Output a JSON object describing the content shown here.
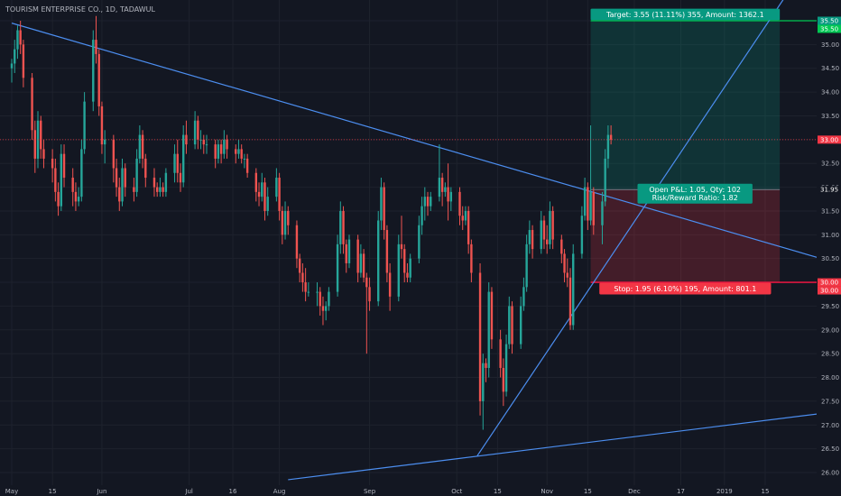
{
  "chart_data": {
    "type": "candlestick",
    "title": "TOURISM ENTERPRISE CO., 1D, TADAWUL",
    "ylim": [
      25.85,
      35.75
    ],
    "y_ticks": [
      "26.00",
      "26.50",
      "27.00",
      "27.50",
      "28.00",
      "28.50",
      "29.00",
      "29.50",
      "30.00",
      "30.50",
      "31.00",
      "31.50",
      "32.00",
      "32.50",
      "33.00",
      "33.50",
      "34.00",
      "34.50",
      "35.00",
      "35.50"
    ],
    "x_ticks": [
      {
        "label": "May",
        "day": 0
      },
      {
        "label": "15",
        "day": 14
      },
      {
        "label": "Jun",
        "day": 31
      },
      {
        "label": "Jul",
        "day": 61
      },
      {
        "label": "16",
        "day": 76
      },
      {
        "label": "Aug",
        "day": 92
      },
      {
        "label": "Sep",
        "day": 123
      },
      {
        "label": "Oct",
        "day": 153
      },
      {
        "label": "15",
        "day": 167
      },
      {
        "label": "Nov",
        "day": 184
      },
      {
        "label": "15",
        "day": 198
      },
      {
        "label": "Dec",
        "day": 214
      },
      {
        "label": "17",
        "day": 230
      },
      {
        "label": "2019",
        "day": 245
      },
      {
        "label": "15",
        "day": 259
      }
    ],
    "price_tags": [
      {
        "value": 35.5,
        "label": "35.50",
        "color": "#089981"
      },
      {
        "value": 35.5,
        "label": "35.50",
        "color": "#00c853",
        "offset": 1
      },
      {
        "value": 33.0,
        "label": "33.00",
        "color": "#f23645"
      },
      {
        "value": 31.95,
        "label": "31.95",
        "color": "#131722"
      },
      {
        "value": 30.0,
        "label": "30.00",
        "color": "#f23645"
      },
      {
        "value": 30.0,
        "label": "30.00",
        "color": "#f23645",
        "offset": 1
      }
    ],
    "position": {
      "start_day": 199,
      "end_day": 264,
      "entry": 31.95,
      "target": 35.5,
      "stop": 30.0,
      "target_label": "Target: 3.55 (11.11%) 355, Amount: 1362.1",
      "stop_label": "Stop: 1.95 (6.10%) 195, Amount: 801.1",
      "pnl_label": "Open P&L: 1.05, Qty: 102",
      "rr_label": "Risk/Reward Ratio: 1.82"
    },
    "trendlines": [
      {
        "from": [
          0,
          35.45
        ],
        "to": [
          281,
          30.45
        ]
      },
      {
        "from": [
          160,
          26.35
        ],
        "to": [
          268,
          36.2
        ]
      },
      {
        "from": [
          95,
          25.85
        ],
        "to": [
          286,
          27.3
        ]
      }
    ],
    "current_price": 33.0,
    "candles": [
      [
        0,
        34.5,
        34.7,
        34.2,
        34.6
      ],
      [
        1,
        34.6,
        35.1,
        34.4,
        34.9
      ],
      [
        2,
        34.9,
        35.4,
        34.7,
        35.3
      ],
      [
        3,
        35.3,
        35.5,
        34.8,
        35.0
      ],
      [
        4,
        35.0,
        35.1,
        34.1,
        34.3
      ],
      [
        7,
        34.3,
        34.4,
        33.0,
        33.2
      ],
      [
        8,
        33.2,
        33.4,
        32.3,
        32.6
      ],
      [
        9,
        32.6,
        33.6,
        32.4,
        33.4
      ],
      [
        10,
        33.4,
        33.5,
        32.6,
        32.8
      ],
      [
        11,
        32.8,
        33.0,
        32.4,
        32.6
      ],
      [
        14,
        32.6,
        32.8,
        32.1,
        32.4
      ],
      [
        15,
        32.4,
        32.6,
        31.7,
        31.9
      ],
      [
        16,
        31.9,
        32.1,
        31.4,
        31.6
      ],
      [
        17,
        31.6,
        32.9,
        31.5,
        32.7
      ],
      [
        18,
        32.7,
        32.9,
        32.0,
        32.2
      ],
      [
        21,
        32.2,
        32.4,
        31.6,
        31.9
      ],
      [
        22,
        31.9,
        32.1,
        31.5,
        31.7
      ],
      [
        23,
        31.7,
        32.0,
        31.6,
        31.8
      ],
      [
        24,
        31.8,
        33.0,
        31.7,
        32.8
      ],
      [
        25,
        32.8,
        34.0,
        32.7,
        33.8
      ],
      [
        28,
        33.8,
        35.3,
        33.6,
        35.1
      ],
      [
        29,
        35.1,
        35.6,
        34.6,
        34.8
      ],
      [
        30,
        34.8,
        34.9,
        33.5,
        33.7
      ],
      [
        31,
        33.7,
        33.8,
        32.7,
        32.9
      ],
      [
        32,
        32.9,
        33.2,
        32.5,
        33.0
      ],
      [
        35,
        33.0,
        33.1,
        32.1,
        32.4
      ],
      [
        36,
        32.4,
        32.6,
        31.8,
        32.0
      ],
      [
        37,
        32.0,
        32.2,
        31.5,
        31.7
      ],
      [
        38,
        31.7,
        32.6,
        31.6,
        32.4
      ],
      [
        39,
        32.4,
        32.5,
        31.8,
        32.0
      ],
      [
        42,
        32.0,
        32.2,
        31.7,
        31.9
      ],
      [
        43,
        31.9,
        32.8,
        31.8,
        32.6
      ],
      [
        44,
        32.6,
        33.3,
        32.5,
        33.1
      ],
      [
        45,
        33.1,
        33.2,
        32.4,
        32.6
      ],
      [
        46,
        32.6,
        32.7,
        32.0,
        32.2
      ],
      [
        49,
        32.2,
        32.4,
        31.8,
        32.0
      ],
      [
        50,
        32.0,
        32.1,
        31.8,
        31.9
      ],
      [
        51,
        31.9,
        32.2,
        31.8,
        32.0
      ],
      [
        52,
        32.0,
        32.1,
        31.8,
        31.9
      ],
      [
        53,
        31.9,
        32.4,
        31.8,
        32.3
      ],
      [
        56,
        32.3,
        32.9,
        32.1,
        32.7
      ],
      [
        57,
        32.7,
        33.0,
        32.1,
        32.3
      ],
      [
        58,
        32.3,
        32.5,
        31.9,
        32.1
      ],
      [
        59,
        32.1,
        33.3,
        32.0,
        33.1
      ],
      [
        60,
        33.1,
        33.4,
        32.7,
        32.9
      ],
      [
        63,
        32.9,
        33.6,
        32.8,
        33.4
      ],
      [
        64,
        33.4,
        33.5,
        32.8,
        33.0
      ],
      [
        65,
        33.0,
        33.2,
        32.8,
        33.0
      ],
      [
        66,
        33.0,
        33.1,
        32.7,
        32.9
      ],
      [
        67,
        32.9,
        33.1,
        32.7,
        32.9
      ],
      [
        70,
        32.9,
        33.0,
        32.4,
        32.6
      ],
      [
        71,
        32.6,
        33.0,
        32.5,
        32.9
      ],
      [
        72,
        32.9,
        33.0,
        32.5,
        32.7
      ],
      [
        73,
        32.7,
        33.2,
        32.6,
        33.0
      ],
      [
        74,
        33.0,
        33.1,
        32.6,
        32.8
      ],
      [
        77,
        32.8,
        32.9,
        32.5,
        32.7
      ],
      [
        78,
        32.7,
        33.0,
        32.6,
        32.8
      ],
      [
        79,
        32.8,
        32.9,
        32.5,
        32.6
      ],
      [
        80,
        32.6,
        32.7,
        32.4,
        32.6
      ],
      [
        81,
        32.6,
        32.7,
        32.2,
        32.3
      ],
      [
        84,
        32.3,
        32.4,
        31.7,
        31.9
      ],
      [
        85,
        31.9,
        32.1,
        31.6,
        31.8
      ],
      [
        86,
        31.8,
        32.3,
        31.7,
        32.1
      ],
      [
        87,
        32.1,
        32.2,
        31.3,
        31.5
      ],
      [
        88,
        31.5,
        32.0,
        31.4,
        31.8
      ],
      [
        91,
        31.8,
        32.4,
        31.7,
        32.2
      ],
      [
        92,
        32.2,
        32.3,
        31.3,
        31.5
      ],
      [
        93,
        31.5,
        31.6,
        30.8,
        31.0
      ],
      [
        94,
        31.0,
        31.7,
        30.9,
        31.5
      ],
      [
        95,
        31.5,
        31.6,
        31.0,
        31.2
      ],
      [
        98,
        31.2,
        31.3,
        30.3,
        30.5
      ],
      [
        99,
        30.5,
        30.6,
        30.0,
        30.2
      ],
      [
        100,
        30.2,
        30.4,
        29.8,
        30.0
      ],
      [
        101,
        30.0,
        30.3,
        29.6,
        29.8
      ],
      [
        102,
        29.8,
        30.0,
        29.7,
        29.8
      ],
      [
        105,
        29.8,
        30.0,
        29.5,
        29.8
      ],
      [
        106,
        29.8,
        29.9,
        29.3,
        29.5
      ],
      [
        107,
        29.5,
        29.7,
        29.1,
        29.4
      ],
      [
        108,
        29.4,
        29.6,
        29.2,
        29.5
      ],
      [
        109,
        29.5,
        29.9,
        29.4,
        29.8
      ],
      [
        112,
        29.8,
        31.0,
        29.7,
        30.8
      ],
      [
        113,
        30.8,
        31.7,
        30.6,
        31.5
      ],
      [
        114,
        31.5,
        31.6,
        30.6,
        30.8
      ],
      [
        115,
        30.8,
        30.9,
        30.2,
        30.4
      ],
      [
        116,
        30.4,
        31.0,
        30.3,
        30.9
      ],
      [
        119,
        30.9,
        31.0,
        30.0,
        30.2
      ],
      [
        120,
        30.2,
        30.8,
        30.1,
        30.6
      ],
      [
        121,
        30.6,
        30.7,
        30.0,
        30.1
      ],
      [
        122,
        30.1,
        30.2,
        28.5,
        29.9
      ],
      [
        123,
        29.9,
        30.1,
        29.4,
        29.6
      ],
      [
        126,
        29.6,
        31.5,
        29.5,
        31.3
      ],
      [
        127,
        31.3,
        32.2,
        31.1,
        32.0
      ],
      [
        128,
        32.0,
        32.1,
        30.9,
        31.1
      ],
      [
        129,
        31.1,
        31.2,
        30.0,
        30.2
      ],
      [
        130,
        30.2,
        30.4,
        29.4,
        29.7
      ],
      [
        133,
        29.7,
        31.0,
        29.6,
        30.8
      ],
      [
        134,
        30.8,
        31.4,
        30.5,
        30.7
      ],
      [
        135,
        30.7,
        30.8,
        30.0,
        30.2
      ],
      [
        136,
        30.2,
        30.4,
        30.0,
        30.1
      ],
      [
        137,
        30.1,
        30.6,
        30.0,
        30.5
      ],
      [
        140,
        30.5,
        31.4,
        30.4,
        31.2
      ],
      [
        141,
        31.2,
        31.8,
        31.0,
        31.6
      ],
      [
        142,
        31.6,
        32.0,
        31.3,
        31.8
      ],
      [
        143,
        31.8,
        31.9,
        31.4,
        31.6
      ],
      [
        144,
        31.6,
        31.9,
        31.5,
        31.8
      ],
      [
        147,
        31.8,
        32.9,
        31.7,
        32.2
      ],
      [
        148,
        32.2,
        32.3,
        31.6,
        31.9
      ],
      [
        149,
        31.9,
        32.1,
        31.8,
        32.0
      ],
      [
        150,
        32.0,
        32.5,
        31.3,
        31.7
      ],
      [
        151,
        31.7,
        32.0,
        31.5,
        31.9
      ],
      [
        154,
        31.9,
        32.0,
        31.2,
        31.4
      ],
      [
        155,
        31.4,
        31.6,
        31.1,
        31.3
      ],
      [
        156,
        31.3,
        31.6,
        31.2,
        31.5
      ],
      [
        157,
        31.5,
        31.6,
        30.6,
        30.8
      ],
      [
        158,
        30.8,
        30.9,
        30.0,
        30.2
      ],
      [
        161,
        30.2,
        30.4,
        27.2,
        27.5
      ],
      [
        162,
        27.5,
        28.5,
        26.9,
        28.3
      ],
      [
        163,
        28.3,
        28.4,
        27.9,
        28.2
      ],
      [
        164,
        28.2,
        30.0,
        28.0,
        29.8
      ],
      [
        165,
        29.8,
        29.9,
        28.6,
        28.8
      ],
      [
        168,
        28.8,
        29.0,
        28.0,
        28.2
      ],
      [
        169,
        28.2,
        28.4,
        27.4,
        27.7
      ],
      [
        170,
        27.7,
        28.9,
        27.6,
        28.7
      ],
      [
        171,
        28.7,
        29.7,
        28.6,
        29.5
      ],
      [
        172,
        29.5,
        29.6,
        28.5,
        28.7
      ],
      [
        175,
        28.7,
        29.7,
        28.6,
        29.5
      ],
      [
        176,
        29.5,
        30.1,
        29.4,
        29.9
      ],
      [
        177,
        29.9,
        31.0,
        29.8,
        30.8
      ],
      [
        178,
        30.8,
        31.3,
        30.6,
        31.1
      ],
      [
        179,
        31.1,
        31.2,
        30.5,
        30.7
      ],
      [
        182,
        30.7,
        31.5,
        30.6,
        31.3
      ],
      [
        183,
        31.3,
        31.4,
        30.7,
        30.9
      ],
      [
        184,
        30.9,
        31.2,
        30.6,
        30.8
      ],
      [
        185,
        30.8,
        31.7,
        30.7,
        31.5
      ],
      [
        186,
        31.5,
        31.6,
        30.7,
        30.9
      ],
      [
        189,
        30.9,
        31.0,
        30.4,
        30.6
      ],
      [
        190,
        30.6,
        30.7,
        30.0,
        30.2
      ],
      [
        191,
        30.2,
        30.5,
        29.9,
        30.1
      ],
      [
        192,
        30.1,
        30.3,
        29.0,
        29.1
      ],
      [
        193,
        29.1,
        30.8,
        29.0,
        30.6
      ],
      [
        196,
        30.6,
        31.6,
        30.5,
        31.4
      ],
      [
        197,
        31.4,
        32.2,
        31.3,
        32.0
      ],
      [
        198,
        32.0,
        32.1,
        31.1,
        31.3
      ],
      [
        199,
        31.3,
        33.3,
        31.2,
        31.9
      ],
      [
        200,
        31.9,
        32.0,
        31.0,
        31.2
      ],
      [
        203,
        31.2,
        31.9,
        30.8,
        31.7
      ],
      [
        204,
        31.7,
        32.8,
        31.6,
        32.6
      ],
      [
        205,
        32.6,
        33.3,
        32.4,
        33.1
      ],
      [
        206,
        33.1,
        33.3,
        32.9,
        33.0
      ]
    ]
  }
}
